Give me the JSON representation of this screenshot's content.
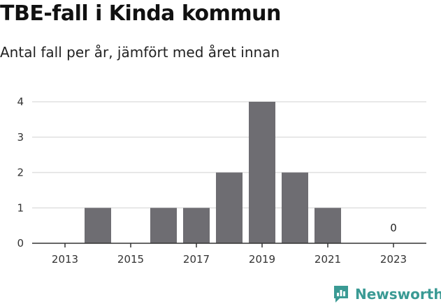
{
  "chart_data": {
    "type": "bar",
    "title": "TBE-fall i Kinda kommun",
    "subtitle": "Antal fall per år, jämfört med året innan",
    "xlabel": "",
    "ylabel": "",
    "categories": [
      "2013",
      "2014",
      "2015",
      "2016",
      "2017",
      "2018",
      "2019",
      "2020",
      "2021",
      "2022",
      "2023"
    ],
    "values": [
      0,
      1,
      0,
      1,
      1,
      2,
      4,
      2,
      1,
      0,
      0
    ],
    "data_labels": [
      {
        "index": 10,
        "text": "0"
      }
    ],
    "x_tick_labels": [
      "2013",
      "2015",
      "2017",
      "2019",
      "2021",
      "2023"
    ],
    "y_ticks": [
      0,
      1,
      2,
      3,
      4
    ],
    "ylim": [
      0,
      4
    ],
    "grid": true,
    "legend": "none",
    "bar_color": "#6e6d72",
    "grid_color": "#e0e0e0"
  },
  "brand": {
    "name": "Newsworthy",
    "icon": "newsworthy-logo-icon",
    "color": "#3a9a94"
  }
}
